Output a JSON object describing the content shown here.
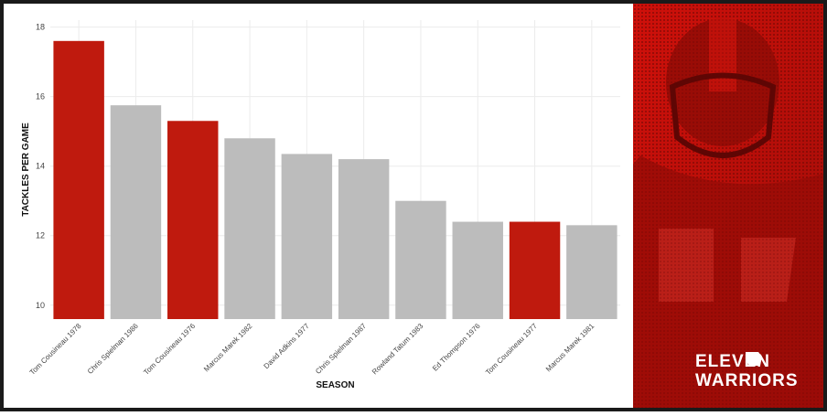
{
  "chart_data": {
    "type": "bar",
    "x_label": "SEASON",
    "y_label": "TACKLES PER GAME",
    "categories": [
      "Tom Cousineau 1978",
      "Chris Spielman 1986",
      "Tom Cousineau 1976",
      "Marcus Marek 1982",
      "David Adkins 1977",
      "Chris Spielman 1987",
      "Rowland Tatum 1983",
      "Ed Thompson 1976",
      "Tom Cousineau 1977",
      "Marcus Marek 1981"
    ],
    "values": [
      17.6,
      15.75,
      15.3,
      14.8,
      14.35,
      14.2,
      13.0,
      12.4,
      12.4,
      12.3
    ],
    "colors": [
      "#bf1a0e",
      "#bcbcbc",
      "#bf1a0e",
      "#bcbcbc",
      "#bcbcbc",
      "#bcbcbc",
      "#bcbcbc",
      "#bcbcbc",
      "#bf1a0e",
      "#bcbcbc"
    ],
    "ylim": [
      9.6,
      18.2
    ],
    "yticks": [
      10,
      12,
      14,
      16,
      18
    ],
    "grid": true
  },
  "branding": {
    "line1": "ELEVEN",
    "line2": "WARRIORS"
  }
}
